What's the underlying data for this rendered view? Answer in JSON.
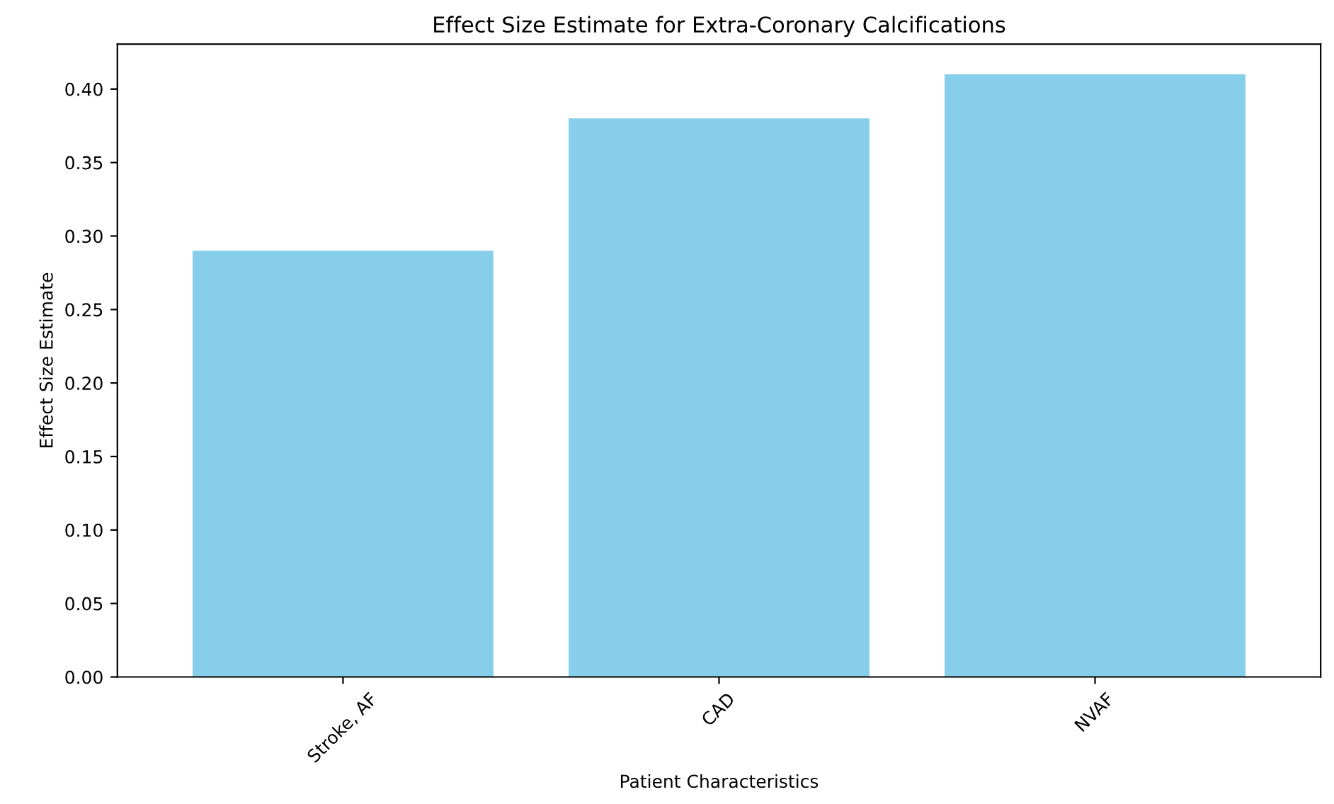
{
  "chart_data": {
    "type": "bar",
    "title": "Effect Size Estimate for Extra-Coronary Calcifications",
    "xlabel": "Patient Characteristics",
    "ylabel": "Effect Size Estimate",
    "categories": [
      "Stroke, AF",
      "CAD",
      "NVAF"
    ],
    "values": [
      0.29,
      0.38,
      0.41
    ],
    "color": "#87ceeb",
    "ylim": [
      0,
      0.4305
    ],
    "yticks": [
      {
        "value": 0,
        "label": "0.00"
      },
      {
        "value": 0.05,
        "label": "0.05"
      },
      {
        "value": 0.1,
        "label": "0.10"
      },
      {
        "value": 0.15,
        "label": "0.15"
      },
      {
        "value": 0.2,
        "label": "0.20"
      },
      {
        "value": 0.25,
        "label": "0.25"
      },
      {
        "value": 0.3,
        "label": "0.30"
      },
      {
        "value": 0.35,
        "label": "0.35"
      },
      {
        "value": 0.4,
        "label": "0.40"
      }
    ],
    "grid": false,
    "legend": false
  }
}
